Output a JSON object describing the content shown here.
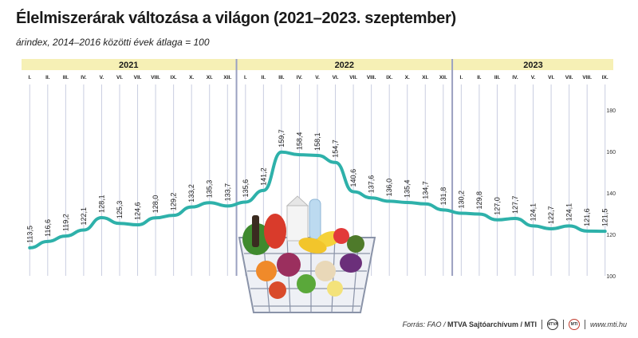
{
  "title": "Élelmiszerárak változása a világon (2021–2023. szeptember)",
  "subtitle": "árindex, 2014–2016 közötti évek átlaga = 100",
  "footer": {
    "source_prefix": "Forrás: FAO / ",
    "source_bold": "MTVA Sajtóarchívum / MTI",
    "logo1_text": "MTVA",
    "logo2_text": "MTI",
    "website": "www.mti.hu"
  },
  "colors": {
    "line": "#2eb1aa",
    "year_band": "#f6f0b5",
    "grid": "#c9cde0",
    "year_divider": "#9aa0c0",
    "text": "#1a1a1a"
  },
  "chart_data": {
    "type": "line",
    "years": [
      {
        "label": "2021",
        "months": 12
      },
      {
        "label": "2022",
        "months": 12
      },
      {
        "label": "2023",
        "months": 9
      }
    ],
    "month_labels": [
      "I.",
      "II.",
      "III.",
      "IV.",
      "V.",
      "VI.",
      "VII.",
      "VIII.",
      "IX.",
      "X.",
      "XI.",
      "XII.",
      "I.",
      "II.",
      "III.",
      "IV.",
      "V.",
      "VI.",
      "VII.",
      "VIII.",
      "IX.",
      "X.",
      "XI.",
      "XII.",
      "I.",
      "II.",
      "III.",
      "IV.",
      "V.",
      "VI.",
      "VII.",
      "VIII.",
      "IX."
    ],
    "values": [
      113.5,
      116.6,
      119.2,
      122.1,
      128.1,
      125.3,
      124.6,
      128.0,
      129.2,
      133.2,
      135.3,
      133.7,
      135.6,
      141.2,
      159.7,
      158.4,
      158.1,
      154.7,
      140.6,
      137.6,
      136.0,
      135.4,
      134.7,
      131.8,
      130.2,
      129.8,
      127.0,
      127.7,
      124.1,
      122.7,
      124.1,
      121.6,
      121.5
    ],
    "value_labels": [
      "113,5",
      "116,6",
      "119,2",
      "122,1",
      "128,1",
      "125,3",
      "124,6",
      "128,0",
      "129,2",
      "133,2",
      "135,3",
      "133,7",
      "135,6",
      "141,2",
      "159,7",
      "158,4",
      "158,1",
      "154,7",
      "140,6",
      "137,6",
      "136,0",
      "135,4",
      "134,7",
      "131,8",
      "130,2",
      "129,8",
      "127,0",
      "127,7",
      "124,1",
      "122,7",
      "124,1",
      "121,6",
      "121,5"
    ],
    "ylim": [
      100,
      180
    ],
    "y_ticks": [
      100,
      120,
      140,
      160,
      180
    ],
    "y_tick_labels": [
      "100",
      "120",
      "140",
      "160",
      "180"
    ],
    "grid": true
  }
}
